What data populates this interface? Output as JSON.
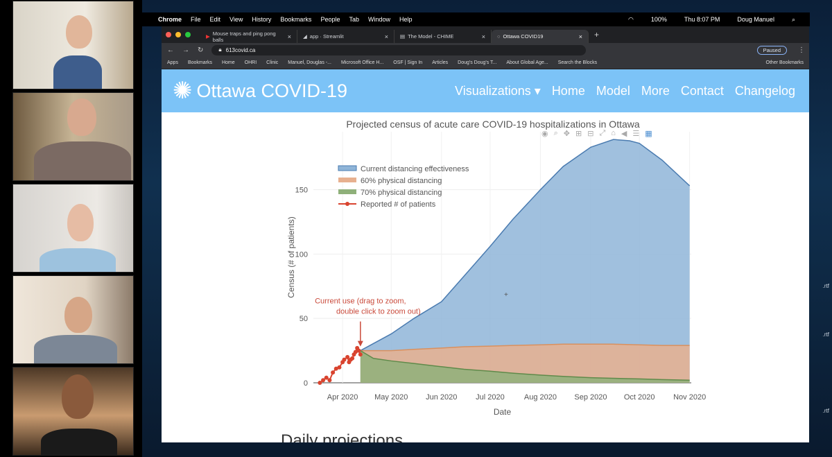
{
  "menubar": {
    "app": "Chrome",
    "items": [
      "File",
      "Edit",
      "View",
      "History",
      "Bookmarks",
      "People",
      "Tab",
      "Window",
      "Help"
    ],
    "battery": "100%",
    "clock": "Thu 8:07 PM",
    "user": "Doug Manuel"
  },
  "browser": {
    "tabs": [
      {
        "label": "Mouse traps and ping pong balls"
      },
      {
        "label": "app · Streamlit"
      },
      {
        "label": "The Model - CHIME"
      },
      {
        "label": "Ottawa COVID19"
      }
    ],
    "url": "613covid.ca",
    "profile": "Paused",
    "bookmarks": [
      "Apps",
      "Bookmarks",
      "Home",
      "OHRI",
      "Clinic",
      "Manuel, Douglas -...",
      "Microsoft Office H...",
      "OSF | Sign In",
      "Articles",
      "Doug's Doug's T...",
      "About Global Age...",
      "Search the Blocks"
    ],
    "other_bookmarks": "Other Bookmarks"
  },
  "site": {
    "brand": "Ottawa COVID-19",
    "nav": [
      "Visualizations ▾",
      "Home",
      "Model",
      "More",
      "Contact",
      "Changelog"
    ],
    "section_heading": "Daily projections"
  },
  "desktop_files": [
    ".rtf",
    ".rtf",
    ".rtf"
  ],
  "colors": {
    "current": "#8fb5d8",
    "current_line": "#4a7bb0",
    "sixty": "#e7b08f",
    "seventy": "#8fb07a",
    "reported": "#d9442f",
    "nav_bg": "#7cc3f7"
  },
  "chart_data": {
    "type": "area",
    "title": "Projected census of acute care COVID-19 hospitalizations in Ottawa",
    "xlabel": "Date",
    "ylabel": "Census (# of patients)",
    "ylim": [
      0,
      195
    ],
    "xlim": [
      "2020-03-14",
      "2020-11-02"
    ],
    "yticks": [
      0,
      50,
      100,
      150
    ],
    "xticks": [
      "Apr 2020",
      "May 2020",
      "Jun 2020",
      "Jul 2020",
      "Aug 2020",
      "Sep 2020",
      "Oct 2020",
      "Nov 2020"
    ],
    "legend_position": "top-left",
    "annotation": "Current use (drag to zoom, double click to zoom out)",
    "series": [
      {
        "name": "Current distancing effectiveness",
        "x": [
          "2020-04-12",
          "2020-05-01",
          "2020-05-15",
          "2020-06-01",
          "2020-06-15",
          "2020-07-01",
          "2020-07-15",
          "2020-08-01",
          "2020-08-15",
          "2020-09-01",
          "2020-09-15",
          "2020-09-25",
          "2020-10-01",
          "2020-10-15",
          "2020-11-01"
        ],
        "y": [
          25,
          38,
          50,
          63,
          83,
          106,
          127,
          150,
          168,
          183,
          189,
          188,
          186,
          173,
          153
        ]
      },
      {
        "name": "60% physical distancing",
        "x": [
          "2020-04-12",
          "2020-05-01",
          "2020-05-15",
          "2020-06-01",
          "2020-06-15",
          "2020-07-01",
          "2020-07-15",
          "2020-08-01",
          "2020-08-15",
          "2020-09-01",
          "2020-09-15",
          "2020-10-01",
          "2020-10-15",
          "2020-11-01"
        ],
        "y": [
          25,
          25,
          26,
          27,
          28,
          28.5,
          29,
          29.5,
          30,
          30,
          30,
          29.5,
          29,
          29
        ]
      },
      {
        "name": "70% physical distancing",
        "x": [
          "2020-04-12",
          "2020-04-20",
          "2020-05-01",
          "2020-05-15",
          "2020-06-01",
          "2020-06-15",
          "2020-07-01",
          "2020-07-15",
          "2020-08-01",
          "2020-08-15",
          "2020-09-01",
          "2020-09-15",
          "2020-10-01",
          "2020-10-15",
          "2020-11-01"
        ],
        "y": [
          25,
          19,
          17,
          15,
          12.5,
          10.5,
          9,
          7.5,
          6,
          5,
          4,
          3.5,
          3,
          2.5,
          2
        ]
      },
      {
        "name": "Reported # of patients",
        "x": [
          "2020-03-18",
          "2020-03-20",
          "2020-03-22",
          "2020-03-24",
          "2020-03-26",
          "2020-03-28",
          "2020-03-30",
          "2020-04-01",
          "2020-04-02",
          "2020-04-04",
          "2020-04-05",
          "2020-04-06",
          "2020-04-07",
          "2020-04-08",
          "2020-04-09",
          "2020-04-10",
          "2020-04-11",
          "2020-04-12"
        ],
        "y": [
          0,
          2,
          4,
          2,
          8,
          11,
          12,
          16,
          18,
          20,
          16,
          18,
          19,
          22,
          24,
          27,
          25,
          22
        ]
      }
    ]
  }
}
